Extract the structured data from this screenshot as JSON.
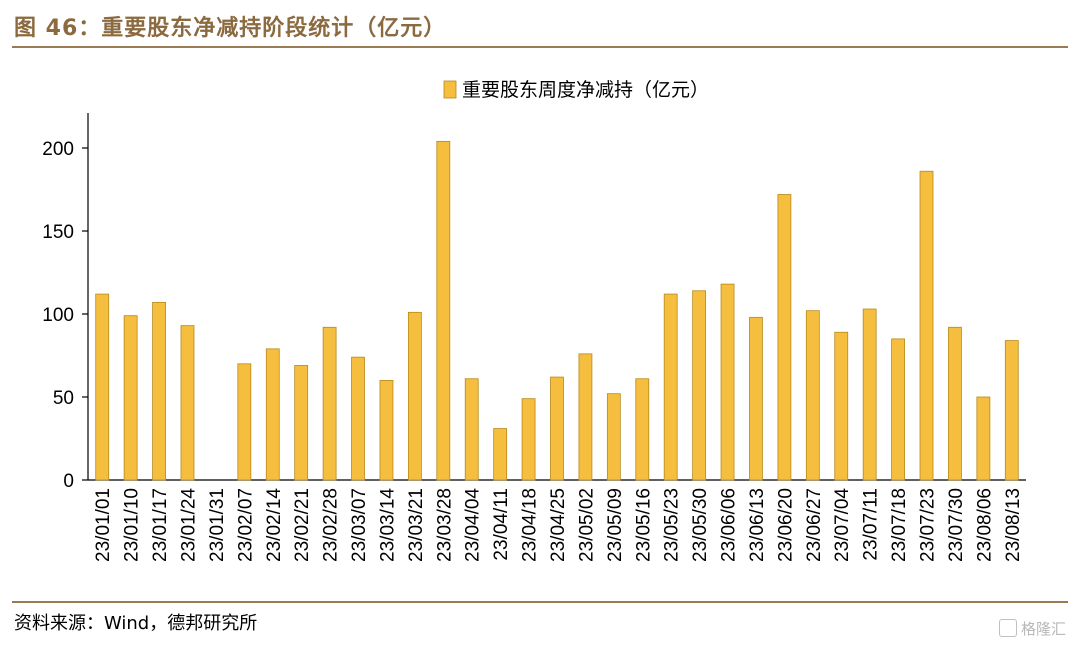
{
  "figure_title": "图 46：重要股东净减持阶段统计（亿元）",
  "source": "资料来源：Wind，德邦研究所",
  "watermark": "格隆汇",
  "colors": {
    "bar": "#f5be3e",
    "bar_stroke": "#b88a1c",
    "rule": "#9a7b53",
    "title": "#8c6a3f"
  },
  "chart_data": {
    "type": "bar",
    "categories": [
      "23/01/01",
      "23/01/10",
      "23/01/17",
      "23/01/24",
      "23/01/31",
      "23/02/07",
      "23/02/14",
      "23/02/21",
      "23/02/28",
      "23/03/07",
      "23/03/14",
      "23/03/21",
      "23/03/28",
      "23/04/04",
      "23/04/11",
      "23/04/18",
      "23/04/25",
      "23/05/02",
      "23/05/09",
      "23/05/16",
      "23/05/23",
      "23/05/30",
      "23/06/06",
      "23/06/13",
      "23/06/20",
      "23/06/27",
      "23/07/04",
      "23/07/11",
      "23/07/18",
      "23/07/23",
      "23/07/30",
      "23/08/06",
      "23/08/13"
    ],
    "series": [
      {
        "name": "重要股东周度净减持（亿元）",
        "values": [
          112,
          99,
          107,
          93,
          0,
          70,
          79,
          69,
          92,
          74,
          60,
          101,
          204,
          61,
          31,
          49,
          62,
          76,
          52,
          61,
          112,
          114,
          118,
          98,
          172,
          102,
          89,
          103,
          85,
          186,
          92,
          50,
          84
        ]
      }
    ],
    "yticks": [
      0,
      50,
      100,
      150,
      200
    ],
    "ylim": [
      0,
      220
    ],
    "legend_position": "top-right",
    "grid": false
  }
}
